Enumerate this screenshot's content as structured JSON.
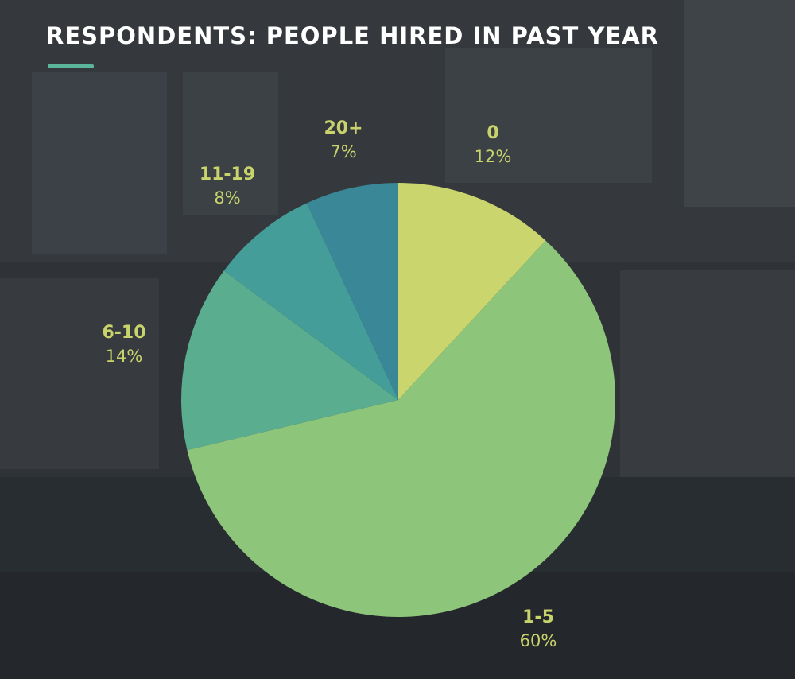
{
  "title": "RESPONDENTS: PEOPLE HIRED IN PAST YEAR",
  "colors": {
    "accent": "#5bb59a",
    "label_text": "#c9d36b",
    "background": "#2f3337"
  },
  "chart_data": {
    "type": "pie",
    "title": "RESPONDENTS: PEOPLE HIRED IN PAST YEAR",
    "slices": [
      {
        "label": "0",
        "value": 12,
        "display": "12%",
        "color": "#cad56d"
      },
      {
        "label": "1-5",
        "value": 60,
        "display": "60%",
        "color": "#8dc57a"
      },
      {
        "label": "6-10",
        "value": 14,
        "display": "14%",
        "color": "#5bad8f"
      },
      {
        "label": "11-19",
        "value": 8,
        "display": "8%",
        "color": "#459d9a"
      },
      {
        "label": "20+",
        "value": 7,
        "display": "7%",
        "color": "#3a8797"
      }
    ],
    "start": "top",
    "direction": "clockwise",
    "legend": "none"
  }
}
